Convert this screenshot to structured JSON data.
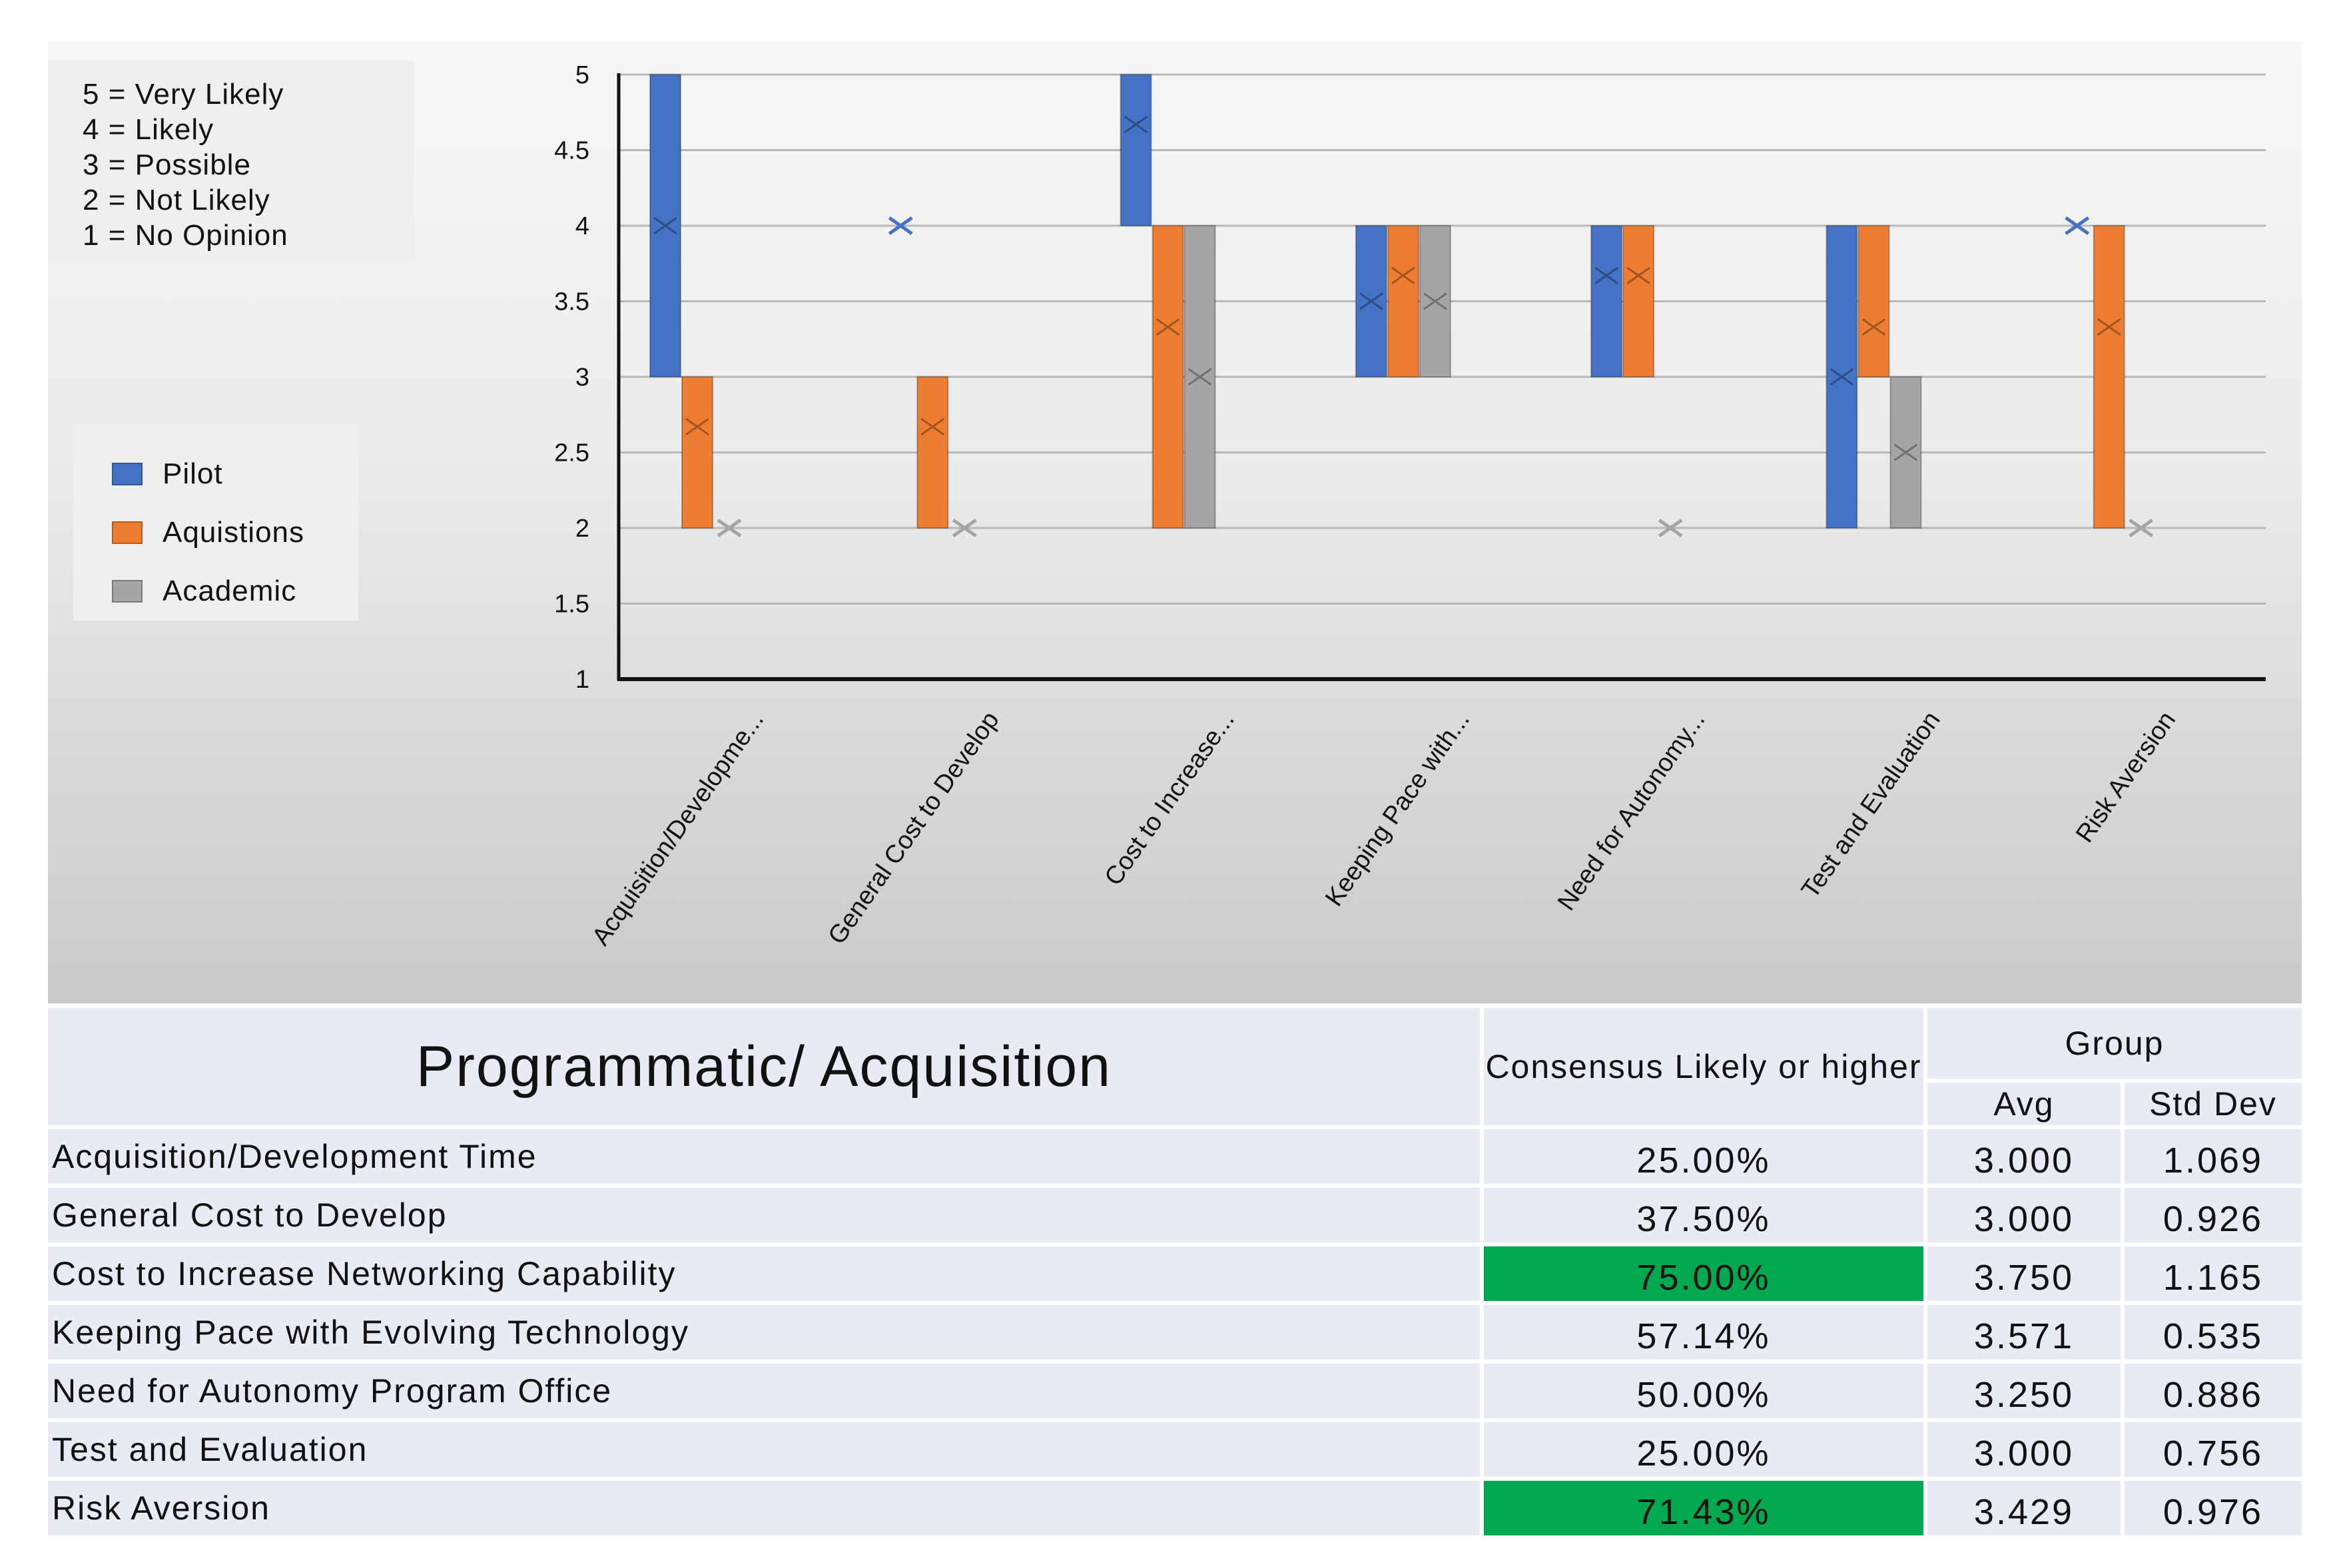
{
  "chart_data": {
    "type": "box",
    "yticks": [
      "5",
      "4.5",
      "4",
      "3.5",
      "3",
      "2.5",
      "2",
      "1.5",
      "1"
    ],
    "ylim": [
      1,
      5
    ],
    "grid": true,
    "categories": [
      "Acquisition/Developme...",
      "General Cost to Develop",
      "Cost to Increase...",
      "Keeping Pace with...",
      "Need for Autonomy...",
      "Test and Evaluation",
      "Risk Aversion"
    ],
    "series": [
      {
        "name": "Pilot",
        "color": "#4472c4",
        "boxes": [
          {
            "low": 3,
            "high": 5,
            "mean": 4
          },
          {
            "low": 4,
            "high": 4,
            "mean": 4
          },
          {
            "low": 4,
            "high": 5,
            "mean": 4.67
          },
          {
            "low": 3,
            "high": 4,
            "mean": 3.5
          },
          {
            "low": 3,
            "high": 4,
            "mean": 3.67
          },
          {
            "low": 2,
            "high": 4,
            "mean": 3
          },
          {
            "low": 4,
            "high": 4,
            "mean": 4
          }
        ]
      },
      {
        "name": "Aquistions",
        "color": "#ed7d31",
        "boxes": [
          {
            "low": 2,
            "high": 3,
            "mean": 2.67
          },
          {
            "low": 2,
            "high": 3,
            "mean": 2.67
          },
          {
            "low": 2,
            "high": 4,
            "mean": 3.33
          },
          {
            "low": 3,
            "high": 4,
            "mean": 3.67
          },
          {
            "low": 3,
            "high": 4,
            "mean": 3.67
          },
          {
            "low": 3,
            "high": 4,
            "mean": 3.33
          },
          {
            "low": 2,
            "high": 4,
            "mean": 3.33
          }
        ]
      },
      {
        "name": "Academic",
        "color": "#a5a5a5",
        "boxes": [
          {
            "low": 2,
            "high": 2,
            "mean": 2
          },
          {
            "low": 2,
            "high": 2,
            "mean": 2
          },
          {
            "low": 2,
            "high": 4,
            "mean": 3
          },
          {
            "low": 3,
            "high": 4,
            "mean": 3.5
          },
          {
            "low": 2,
            "high": 2,
            "mean": 2
          },
          {
            "low": 2,
            "high": 3,
            "mean": 2.5
          },
          {
            "low": 2,
            "high": 2,
            "mean": 2
          }
        ]
      }
    ],
    "scale_key": [
      "5 = Very Likely",
      "4 = Likely",
      "3 = Possible",
      "2 = Not Likely",
      "1 = No Opinion"
    ]
  },
  "table": {
    "title": "Programmatic/ Acquisition",
    "consensus_header": "Consensus Likely or higher",
    "group_header": "Group",
    "avg_header": "Avg",
    "std_header": "Std Dev",
    "highlight_color": "#00a84f",
    "rows": [
      {
        "label": "Acquisition/Development Time",
        "consensus": "25.00%",
        "avg": "3.000",
        "std": "1.069",
        "highlight": false
      },
      {
        "label": "General Cost to Develop",
        "consensus": "37.50%",
        "avg": "3.000",
        "std": "0.926",
        "highlight": false
      },
      {
        "label": "Cost to Increase Networking Capability",
        "consensus": "75.00%",
        "avg": "3.750",
        "std": "1.165",
        "highlight": true
      },
      {
        "label": "Keeping Pace with Evolving Technology",
        "consensus": "57.14%",
        "avg": "3.571",
        "std": "0.535",
        "highlight": false
      },
      {
        "label": "Need for Autonomy Program Office",
        "consensus": "50.00%",
        "avg": "3.250",
        "std": "0.886",
        "highlight": false
      },
      {
        "label": "Test and Evaluation",
        "consensus": "25.00%",
        "avg": "3.000",
        "std": "0.756",
        "highlight": false
      },
      {
        "label": "Risk Aversion",
        "consensus": "71.43%",
        "avg": "3.429",
        "std": "0.976",
        "highlight": true
      }
    ]
  }
}
